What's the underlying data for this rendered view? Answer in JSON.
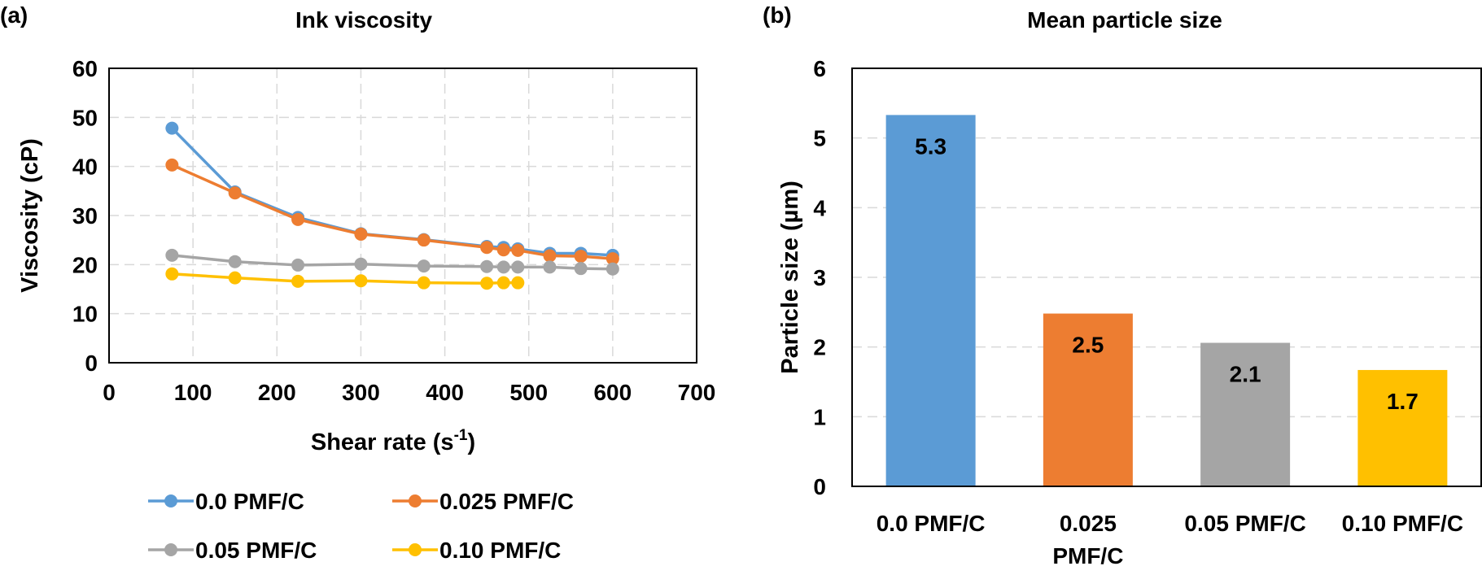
{
  "chart_data": [
    {
      "type": "line",
      "panel_label": "(a)",
      "title": "Ink viscosity",
      "xlabel_base": "Shear rate (s",
      "xlabel_sup": "-1",
      "xlabel_end": ")",
      "ylabel": "Viscosity (cP)",
      "xlim": [
        0,
        700
      ],
      "ylim": [
        0,
        60
      ],
      "xticks": [
        "0",
        "100",
        "200",
        "300",
        "400",
        "500",
        "600",
        "700"
      ],
      "yticks": [
        "0",
        "10",
        "20",
        "30",
        "40",
        "50",
        "60"
      ],
      "grid": true,
      "legend_placement": "bottom",
      "series": [
        {
          "name": "0.0 PMF/C",
          "color": "#5b9bd5",
          "x": [
            75,
            150,
            225,
            300,
            375,
            450,
            470,
            487,
            525,
            562,
            600
          ],
          "y": [
            47.8,
            34.8,
            29.6,
            26.3,
            25.1,
            23.7,
            23.5,
            23.2,
            22.3,
            22.3,
            21.9
          ]
        },
        {
          "name": "0.025 PMF/C",
          "color": "#ed7d31",
          "x": [
            75,
            150,
            225,
            300,
            375,
            450,
            470,
            487,
            525,
            562,
            600
          ],
          "y": [
            40.3,
            34.6,
            29.2,
            26.2,
            25.0,
            23.5,
            23.0,
            22.9,
            21.8,
            21.7,
            21.2
          ]
        },
        {
          "name": "0.05 PMF/C",
          "color": "#a5a5a5",
          "x": [
            75,
            150,
            225,
            300,
            375,
            450,
            470,
            487,
            525,
            562,
            600
          ],
          "y": [
            21.9,
            20.6,
            19.9,
            20.1,
            19.7,
            19.6,
            19.5,
            19.5,
            19.5,
            19.2,
            19.1
          ]
        },
        {
          "name": "0.10 PMF/C",
          "color": "#ffc000",
          "x": [
            75,
            150,
            225,
            300,
            375,
            450,
            470,
            487
          ],
          "y": [
            18.1,
            17.3,
            16.6,
            16.7,
            16.3,
            16.2,
            16.3,
            16.3
          ]
        }
      ]
    },
    {
      "type": "bar",
      "panel_label": "(b)",
      "title": "Mean particle size",
      "xlabel": "",
      "ylabel": "Particle size (µm)",
      "ylim": [
        0,
        6
      ],
      "yticks": [
        "0",
        "1",
        "2",
        "3",
        "4",
        "5",
        "6"
      ],
      "grid": true,
      "categories": [
        [
          "0.0 PMF/C"
        ],
        [
          "0.025",
          "PMF/C"
        ],
        [
          "0.05 PMF/C"
        ],
        [
          "0.10 PMF/C"
        ]
      ],
      "values": [
        5.33,
        2.48,
        2.06,
        1.67
      ],
      "data_labels": [
        "5.3",
        "2.5",
        "2.1",
        "1.7"
      ],
      "colors": [
        "#5b9bd5",
        "#ed7d31",
        "#a5a5a5",
        "#ffc000"
      ]
    }
  ]
}
